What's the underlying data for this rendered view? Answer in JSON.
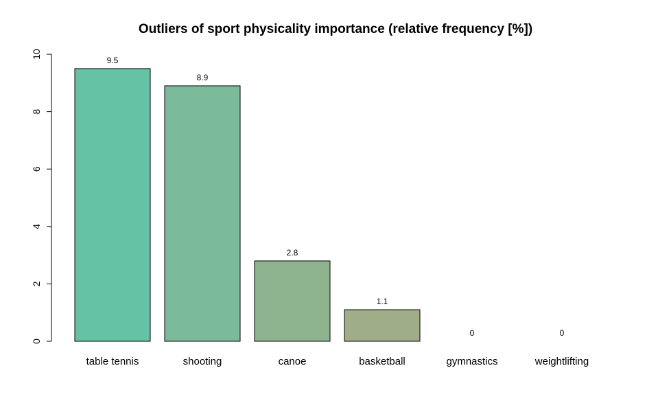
{
  "chart_data": {
    "type": "bar",
    "title": "Outliers of sport physicality importance (relative frequency [%])",
    "xlabel": "",
    "ylabel": "",
    "categories": [
      "table tennis",
      "shooting",
      "canoe",
      "basketball",
      "gymnastics",
      "weightlifting"
    ],
    "values": [
      9.5,
      8.9,
      2.8,
      1.1,
      0,
      0
    ],
    "data_labels": [
      "9.5",
      "8.9",
      "2.8",
      "1.1",
      "0",
      "0"
    ],
    "colors": [
      "#66c2a5",
      "#7bbb9b",
      "#8db38f",
      "#a0ad89",
      "#a6a683",
      "#aca27e"
    ],
    "ylim": [
      0,
      10
    ],
    "yticks": [
      "0",
      "2",
      "4",
      "6",
      "8",
      "10"
    ],
    "grid": false,
    "legend": "none"
  }
}
